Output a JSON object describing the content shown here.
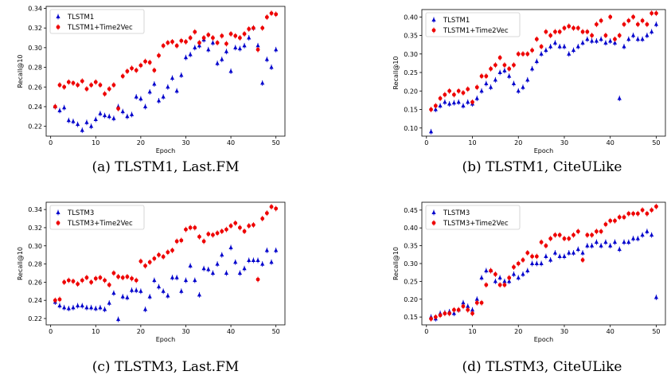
{
  "chart_data": [
    {
      "type": "scatter",
      "caption": "(a) TLSTM1, Last.FM",
      "xlabel": "Epoch",
      "ylabel": "Recall@10",
      "xlim": [
        -1,
        52
      ],
      "ylim": [
        0.21,
        0.342
      ],
      "xticks": [
        0,
        10,
        20,
        30,
        40,
        50
      ],
      "yticks": [
        0.22,
        0.24,
        0.26,
        0.28,
        0.3,
        0.32,
        0.34
      ],
      "ytick_labels": [
        "0.22",
        "0.24",
        "0.26",
        "0.28",
        "0.30",
        "0.32",
        "0.34"
      ],
      "legend_position": "top-left",
      "grid": false,
      "series": [
        {
          "name": "TLSTM1",
          "marker": "triangle",
          "color": "#0000cc",
          "x": [
            1,
            2,
            3,
            4,
            5,
            6,
            7,
            8,
            9,
            10,
            11,
            12,
            13,
            14,
            15,
            16,
            17,
            18,
            19,
            20,
            21,
            22,
            23,
            24,
            25,
            26,
            27,
            28,
            29,
            30,
            31,
            32,
            33,
            34,
            35,
            36,
            37,
            38,
            39,
            40,
            41,
            42,
            43,
            44,
            45,
            46,
            47,
            48,
            49,
            50
          ],
          "y": [
            0.24,
            0.236,
            0.239,
            0.226,
            0.225,
            0.222,
            0.216,
            0.224,
            0.22,
            0.227,
            0.233,
            0.231,
            0.23,
            0.228,
            0.24,
            0.235,
            0.23,
            0.232,
            0.25,
            0.248,
            0.24,
            0.255,
            0.263,
            0.246,
            0.25,
            0.26,
            0.269,
            0.256,
            0.272,
            0.29,
            0.293,
            0.3,
            0.302,
            0.308,
            0.298,
            0.305,
            0.284,
            0.288,
            0.296,
            0.276,
            0.3,
            0.299,
            0.302,
            0.31,
            0.32,
            0.302,
            0.264,
            0.288,
            0.28,
            0.298
          ]
        },
        {
          "name": "TLSTM1+Time2Vec",
          "marker": "circle",
          "color": "#ee0000",
          "x": [
            1,
            2,
            3,
            4,
            5,
            6,
            7,
            8,
            9,
            10,
            11,
            12,
            13,
            14,
            15,
            16,
            17,
            18,
            19,
            20,
            21,
            22,
            23,
            24,
            25,
            26,
            27,
            28,
            29,
            30,
            31,
            32,
            33,
            34,
            35,
            36,
            37,
            38,
            39,
            40,
            41,
            42,
            43,
            44,
            45,
            46,
            47,
            48,
            49,
            50
          ],
          "y": [
            0.24,
            0.262,
            0.26,
            0.265,
            0.264,
            0.262,
            0.266,
            0.258,
            0.262,
            0.265,
            0.262,
            0.253,
            0.258,
            0.262,
            0.238,
            0.271,
            0.276,
            0.279,
            0.277,
            0.282,
            0.286,
            0.285,
            0.277,
            0.292,
            0.302,
            0.305,
            0.306,
            0.302,
            0.307,
            0.306,
            0.31,
            0.316,
            0.305,
            0.31,
            0.313,
            0.31,
            0.305,
            0.312,
            0.304,
            0.314,
            0.312,
            0.31,
            0.314,
            0.319,
            0.32,
            0.298,
            0.32,
            0.331,
            0.335,
            0.334
          ]
        }
      ]
    },
    {
      "type": "scatter",
      "caption": "(b) TLSTM1, CiteULike",
      "xlabel": "Epoch",
      "ylabel": "Recall@10",
      "xlim": [
        -1,
        52
      ],
      "ylim": [
        0.078,
        0.42
      ],
      "xticks": [
        0,
        10,
        20,
        30,
        40,
        50
      ],
      "yticks": [
        0.1,
        0.15,
        0.2,
        0.25,
        0.3,
        0.35,
        0.4
      ],
      "ytick_labels": [
        "0.10",
        "0.15",
        "0.20",
        "0.25",
        "0.30",
        "0.35",
        "0.40"
      ],
      "legend_position": "top-left",
      "grid": false,
      "series": [
        {
          "name": "TLSTM1",
          "marker": "triangle",
          "color": "#0000cc",
          "x": [
            1,
            2,
            3,
            4,
            5,
            6,
            7,
            8,
            9,
            10,
            11,
            12,
            13,
            14,
            15,
            16,
            17,
            18,
            19,
            20,
            21,
            22,
            23,
            24,
            25,
            26,
            27,
            28,
            29,
            30,
            31,
            32,
            33,
            34,
            35,
            36,
            37,
            38,
            39,
            40,
            41,
            42,
            43,
            44,
            45,
            46,
            47,
            48,
            49,
            50
          ],
          "y": [
            0.09,
            0.15,
            0.16,
            0.17,
            0.165,
            0.168,
            0.17,
            0.16,
            0.17,
            0.165,
            0.18,
            0.2,
            0.22,
            0.21,
            0.23,
            0.25,
            0.255,
            0.24,
            0.22,
            0.2,
            0.21,
            0.23,
            0.26,
            0.28,
            0.3,
            0.31,
            0.32,
            0.33,
            0.32,
            0.32,
            0.3,
            0.31,
            0.32,
            0.33,
            0.34,
            0.335,
            0.335,
            0.34,
            0.33,
            0.335,
            0.33,
            0.18,
            0.32,
            0.34,
            0.35,
            0.34,
            0.34,
            0.35,
            0.36,
            0.38
          ]
        },
        {
          "name": "TLSTM1+Time2Vec",
          "marker": "circle",
          "color": "#ee0000",
          "x": [
            1,
            2,
            3,
            4,
            5,
            6,
            7,
            8,
            9,
            10,
            11,
            12,
            13,
            14,
            15,
            16,
            17,
            18,
            19,
            20,
            21,
            22,
            23,
            24,
            25,
            26,
            27,
            28,
            29,
            30,
            31,
            32,
            33,
            34,
            35,
            36,
            37,
            38,
            39,
            40,
            41,
            42,
            43,
            44,
            45,
            46,
            47,
            48,
            49,
            50
          ],
          "y": [
            0.15,
            0.16,
            0.18,
            0.19,
            0.2,
            0.19,
            0.2,
            0.195,
            0.205,
            0.17,
            0.21,
            0.24,
            0.24,
            0.26,
            0.27,
            0.29,
            0.27,
            0.26,
            0.27,
            0.3,
            0.3,
            0.3,
            0.31,
            0.34,
            0.32,
            0.36,
            0.35,
            0.36,
            0.36,
            0.37,
            0.375,
            0.37,
            0.37,
            0.36,
            0.36,
            0.35,
            0.38,
            0.39,
            0.35,
            0.4,
            0.34,
            0.35,
            0.38,
            0.39,
            0.4,
            0.38,
            0.39,
            0.38,
            0.41,
            0.41
          ]
        }
      ]
    },
    {
      "type": "scatter",
      "caption": "(c) TLSTM3, Last.FM",
      "xlabel": "Epoch",
      "ylabel": "Recall@10",
      "xlim": [
        -1,
        52
      ],
      "ylim": [
        0.213,
        0.348
      ],
      "xticks": [
        0,
        10,
        20,
        30,
        40,
        50
      ],
      "yticks": [
        0.22,
        0.24,
        0.26,
        0.28,
        0.3,
        0.32,
        0.34
      ],
      "ytick_labels": [
        "0.22",
        "0.24",
        "0.26",
        "0.28",
        "0.30",
        "0.32",
        "0.34"
      ],
      "legend_position": "top-left",
      "grid": false,
      "series": [
        {
          "name": "TLSTM3",
          "marker": "triangle",
          "color": "#0000cc",
          "x": [
            1,
            2,
            3,
            4,
            5,
            6,
            7,
            8,
            9,
            10,
            11,
            12,
            13,
            14,
            15,
            16,
            17,
            18,
            19,
            20,
            21,
            22,
            23,
            24,
            25,
            26,
            27,
            28,
            29,
            30,
            31,
            32,
            33,
            34,
            35,
            36,
            37,
            38,
            39,
            40,
            41,
            42,
            43,
            44,
            45,
            46,
            47,
            48,
            49,
            50
          ],
          "y": [
            0.238,
            0.234,
            0.232,
            0.231,
            0.232,
            0.234,
            0.234,
            0.232,
            0.232,
            0.231,
            0.232,
            0.23,
            0.237,
            0.248,
            0.219,
            0.244,
            0.243,
            0.251,
            0.251,
            0.25,
            0.23,
            0.244,
            0.262,
            0.255,
            0.25,
            0.245,
            0.265,
            0.265,
            0.25,
            0.262,
            0.278,
            0.262,
            0.246,
            0.275,
            0.274,
            0.27,
            0.28,
            0.29,
            0.27,
            0.298,
            0.282,
            0.27,
            0.275,
            0.284,
            0.284,
            0.284,
            0.28,
            0.295,
            0.282,
            0.295
          ]
        },
        {
          "name": "TLSTM3+Time2Vec",
          "marker": "circle",
          "color": "#ee0000",
          "x": [
            1,
            2,
            3,
            4,
            5,
            6,
            7,
            8,
            9,
            10,
            11,
            12,
            13,
            14,
            15,
            16,
            17,
            18,
            19,
            20,
            21,
            22,
            23,
            24,
            25,
            26,
            27,
            28,
            29,
            30,
            31,
            32,
            33,
            34,
            35,
            36,
            37,
            38,
            39,
            40,
            41,
            42,
            43,
            44,
            45,
            46,
            47,
            48,
            49,
            50
          ],
          "y": [
            0.24,
            0.241,
            0.26,
            0.262,
            0.261,
            0.258,
            0.262,
            0.265,
            0.26,
            0.264,
            0.265,
            0.262,
            0.257,
            0.27,
            0.266,
            0.265,
            0.266,
            0.264,
            0.262,
            0.283,
            0.278,
            0.282,
            0.286,
            0.29,
            0.288,
            0.293,
            0.295,
            0.305,
            0.306,
            0.318,
            0.32,
            0.32,
            0.31,
            0.305,
            0.313,
            0.312,
            0.314,
            0.316,
            0.318,
            0.322,
            0.325,
            0.32,
            0.316,
            0.322,
            0.323,
            0.263,
            0.33,
            0.336,
            0.343,
            0.341
          ]
        }
      ]
    },
    {
      "type": "scatter",
      "caption": "(d) TLSTM3, CiteULike",
      "xlabel": "Epoch",
      "ylabel": "Recall@10",
      "xlim": [
        -1,
        52
      ],
      "ylim": [
        0.128,
        0.472
      ],
      "xticks": [
        0,
        10,
        20,
        30,
        40,
        50
      ],
      "yticks": [
        0.15,
        0.2,
        0.25,
        0.3,
        0.35,
        0.4,
        0.45
      ],
      "ytick_labels": [
        "0.15",
        "0.20",
        "0.25",
        "0.30",
        "0.35",
        "0.40",
        "0.45"
      ],
      "legend_position": "top-left",
      "grid": false,
      "series": [
        {
          "name": "TLSTM3",
          "marker": "triangle",
          "color": "#0000cc",
          "x": [
            1,
            2,
            3,
            4,
            5,
            6,
            7,
            8,
            9,
            10,
            11,
            12,
            13,
            14,
            15,
            16,
            17,
            18,
            19,
            20,
            21,
            22,
            23,
            24,
            25,
            26,
            27,
            28,
            29,
            30,
            31,
            32,
            33,
            34,
            35,
            36,
            37,
            38,
            39,
            40,
            41,
            42,
            43,
            44,
            45,
            46,
            47,
            48,
            49,
            50
          ],
          "y": [
            0.15,
            0.145,
            0.16,
            0.162,
            0.165,
            0.16,
            0.17,
            0.19,
            0.18,
            0.17,
            0.2,
            0.26,
            0.28,
            0.28,
            0.25,
            0.26,
            0.25,
            0.25,
            0.27,
            0.26,
            0.27,
            0.28,
            0.3,
            0.3,
            0.3,
            0.32,
            0.31,
            0.33,
            0.32,
            0.32,
            0.33,
            0.33,
            0.34,
            0.33,
            0.35,
            0.35,
            0.36,
            0.35,
            0.36,
            0.35,
            0.36,
            0.34,
            0.36,
            0.36,
            0.37,
            0.37,
            0.38,
            0.39,
            0.38,
            0.205
          ]
        },
        {
          "name": "TLSTM3+Time2Vec",
          "marker": "circle",
          "color": "#ee0000",
          "x": [
            1,
            2,
            3,
            4,
            5,
            6,
            7,
            8,
            9,
            10,
            11,
            12,
            13,
            14,
            15,
            16,
            17,
            18,
            19,
            20,
            21,
            22,
            23,
            24,
            25,
            26,
            27,
            28,
            29,
            30,
            31,
            32,
            33,
            34,
            35,
            36,
            37,
            38,
            39,
            40,
            41,
            42,
            43,
            44,
            45,
            46,
            47,
            48,
            49,
            50
          ],
          "y": [
            0.145,
            0.15,
            0.155,
            0.16,
            0.16,
            0.17,
            0.17,
            0.18,
            0.17,
            0.16,
            0.19,
            0.19,
            0.24,
            0.28,
            0.27,
            0.24,
            0.24,
            0.26,
            0.29,
            0.3,
            0.31,
            0.33,
            0.32,
            0.32,
            0.36,
            0.35,
            0.37,
            0.38,
            0.38,
            0.37,
            0.37,
            0.38,
            0.39,
            0.31,
            0.38,
            0.38,
            0.39,
            0.39,
            0.41,
            0.42,
            0.42,
            0.43,
            0.43,
            0.44,
            0.44,
            0.44,
            0.45,
            0.44,
            0.45,
            0.46
          ]
        }
      ]
    }
  ]
}
